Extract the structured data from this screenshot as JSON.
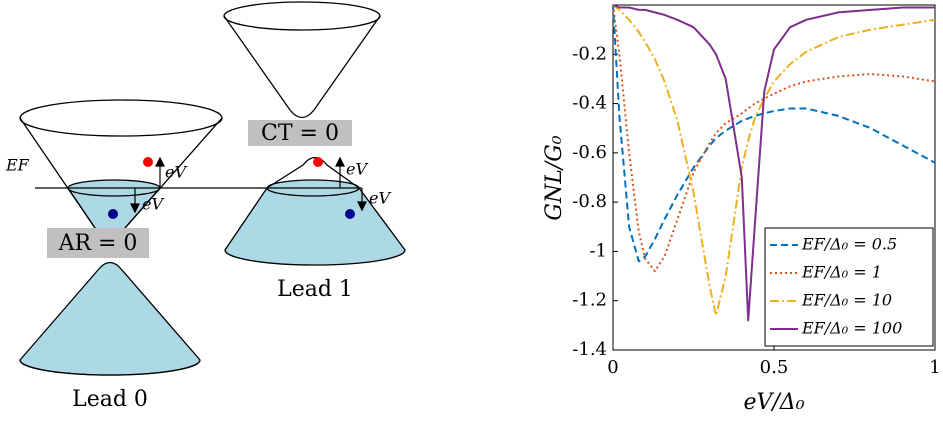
{
  "diagram": {
    "fermi_label": "EF",
    "ev_labels": [
      "eV",
      "eV",
      "eV",
      "eV"
    ],
    "ar_label": "AR = 0",
    "ct_label": "CT = 0",
    "lead0_label": "Lead 0",
    "lead1_label": "Lead 1"
  },
  "chart_data": {
    "type": "line",
    "xlabel": "eV/Δ₀",
    "ylabel": "GNL/G₀",
    "x": [
      0,
      0.02,
      0.05,
      0.08,
      0.1,
      0.13,
      0.16,
      0.2,
      0.25,
      0.3,
      0.32,
      0.35,
      0.4,
      0.42,
      0.44,
      0.47,
      0.5,
      0.55,
      0.6,
      0.7,
      0.8,
      0.9,
      1.0
    ],
    "xlim": [
      0,
      1
    ],
    "xticks": [
      0,
      0.5,
      1
    ],
    "ylim": [
      -1.4,
      0
    ],
    "yticks": [
      -1.4,
      -1.2,
      -1,
      -0.8,
      -0.6,
      -0.4,
      -0.2
    ],
    "legend": "lower right",
    "series": [
      {
        "name": "EF/Δ₀ = 0.5",
        "color": "#0072bd",
        "dash": "7,4",
        "values": [
          0,
          -0.45,
          -0.9,
          -1.04,
          -1.02,
          -0.95,
          -0.87,
          -0.77,
          -0.66,
          -0.57,
          -0.54,
          -0.51,
          -0.47,
          -0.46,
          -0.45,
          -0.44,
          -0.43,
          -0.42,
          -0.42,
          -0.45,
          -0.5,
          -0.57,
          -0.64
        ]
      },
      {
        "name": "EF/Δ₀ = 1",
        "color": "#d95319",
        "dash": "2,3",
        "values": [
          0,
          -0.2,
          -0.6,
          -0.92,
          -1.03,
          -1.08,
          -1.02,
          -0.87,
          -0.68,
          -0.56,
          -0.52,
          -0.48,
          -0.44,
          -0.42,
          -0.4,
          -0.38,
          -0.36,
          -0.33,
          -0.31,
          -0.29,
          -0.28,
          -0.29,
          -0.31
        ]
      },
      {
        "name": "EF/Δ₀ = 10",
        "color": "#edb120",
        "dash": "9,3,2,3",
        "values": [
          0,
          -0.02,
          -0.06,
          -0.11,
          -0.15,
          -0.22,
          -0.31,
          -0.47,
          -0.76,
          -1.14,
          -1.26,
          -1.1,
          -0.66,
          -0.55,
          -0.46,
          -0.38,
          -0.31,
          -0.24,
          -0.19,
          -0.13,
          -0.1,
          -0.08,
          -0.06
        ]
      },
      {
        "name": "EF/Δ₀ = 100",
        "color": "#7e2f8e",
        "dash": "",
        "values": [
          0,
          -0.01,
          -0.01,
          -0.02,
          -0.02,
          -0.03,
          -0.04,
          -0.06,
          -0.09,
          -0.16,
          -0.2,
          -0.3,
          -0.7,
          -1.28,
          -0.9,
          -0.35,
          -0.18,
          -0.09,
          -0.06,
          -0.03,
          -0.02,
          -0.01,
          -0.01
        ]
      }
    ]
  }
}
